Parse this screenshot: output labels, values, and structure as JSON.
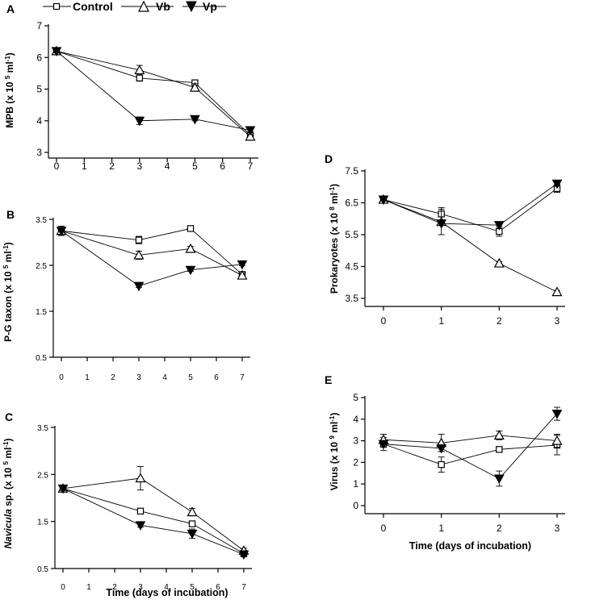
{
  "legend": {
    "items": [
      {
        "name": "Control",
        "marker": "square"
      },
      {
        "name": "Vb",
        "marker": "triangle-up"
      },
      {
        "name": "Vp",
        "marker": "triangle-down"
      }
    ]
  },
  "x_axis_title": "Time (days of incubation)",
  "colors": {
    "ink": "#000000",
    "background": "#ffffff"
  },
  "chart_data": [
    {
      "type": "line",
      "panel_label": "A",
      "title": "",
      "ylabel": "MPB (x 10 5 ml-1)",
      "ylabel_parts": [
        {
          "t": "MPB (x 10 ",
          "s": "normal"
        },
        {
          "t": "5",
          "s": "sup"
        },
        {
          "t": " ml",
          "s": "normal"
        },
        {
          "t": "-1",
          "s": "sup"
        },
        {
          "t": ")",
          "s": "normal"
        }
      ],
      "xlabel": "",
      "xlim": [
        0,
        7
      ],
      "ylim": [
        3,
        7
      ],
      "xticks": [
        0,
        1,
        2,
        3,
        4,
        5,
        6,
        7
      ],
      "xtick_labels": [
        "0",
        "1",
        "2",
        "3",
        "4",
        "5",
        "6",
        "7"
      ],
      "yticks": [
        3,
        4,
        5,
        6,
        7
      ],
      "ytick_labels": [
        "3",
        "4",
        "5",
        "6",
        "7"
      ],
      "series": [
        {
          "name": "Control",
          "marker": "square",
          "x": [
            0,
            3,
            5,
            7
          ],
          "y": [
            6.2,
            5.35,
            5.2,
            3.55
          ],
          "err": [
            0.05,
            0.1,
            0.07,
            0.08
          ]
        },
        {
          "name": "Vb",
          "marker": "triangle-up",
          "x": [
            0,
            3,
            5,
            7
          ],
          "y": [
            6.2,
            5.6,
            5.05,
            3.5
          ],
          "err": [
            0.05,
            0.15,
            0.12,
            0.08
          ]
        },
        {
          "name": "Vp",
          "marker": "triangle-down",
          "x": [
            0,
            3,
            5,
            7
          ],
          "y": [
            6.2,
            4.0,
            4.05,
            3.7
          ],
          "err": [
            0.05,
            0.12,
            0.05,
            0.08
          ]
        }
      ]
    },
    {
      "type": "line",
      "panel_label": "B",
      "title": "",
      "ylabel": "P-G taxon (x 10 5 ml-1)",
      "ylabel_parts": [
        {
          "t": "P-G taxon (x 10 ",
          "s": "normal"
        },
        {
          "t": "5",
          "s": "sup"
        },
        {
          "t": " ml",
          "s": "normal"
        },
        {
          "t": "-1",
          "s": "sup"
        },
        {
          "t": ")",
          "s": "normal"
        }
      ],
      "xlabel": "",
      "xlim": [
        0,
        7
      ],
      "ylim": [
        0.5,
        3.5
      ],
      "xticks": [
        0,
        1,
        2,
        3,
        4,
        5,
        6,
        7
      ],
      "xtick_labels": [
        "0",
        "1",
        "2",
        "3",
        "4",
        "5",
        "6",
        "7"
      ],
      "yticks": [
        0.5,
        1.5,
        2.5,
        3.5
      ],
      "ytick_labels": [
        "0.5",
        "1.5",
        "2.5",
        "3.5"
      ],
      "series": [
        {
          "name": "Control",
          "marker": "square",
          "x": [
            0,
            3,
            5,
            7
          ],
          "y": [
            3.25,
            3.05,
            3.3,
            2.3
          ],
          "err": [
            0.1,
            0.08,
            0.06,
            0.05
          ]
        },
        {
          "name": "Vb",
          "marker": "triangle-up",
          "x": [
            0,
            3,
            5,
            7
          ],
          "y": [
            3.25,
            2.72,
            2.86,
            2.28
          ],
          "err": [
            0.1,
            0.09,
            0.05,
            0.05
          ]
        },
        {
          "name": "Vp",
          "marker": "triangle-down",
          "x": [
            0,
            3,
            5,
            7
          ],
          "y": [
            3.25,
            2.05,
            2.4,
            2.52
          ],
          "err": [
            0.1,
            0.03,
            0.03,
            0.03
          ]
        }
      ]
    },
    {
      "type": "line",
      "panel_label": "C",
      "title": "",
      "ylabel": "Navicula sp. (x 10 5 ml-1)",
      "ylabel_parts": [
        {
          "t": "Navicula",
          "s": "italic"
        },
        {
          "t": " sp. (x 10 ",
          "s": "normal"
        },
        {
          "t": "5",
          "s": "sup"
        },
        {
          "t": " ml",
          "s": "normal"
        },
        {
          "t": "-1",
          "s": "sup"
        },
        {
          "t": ")",
          "s": "normal"
        }
      ],
      "xlabel": "",
      "xlim": [
        0,
        7
      ],
      "ylim": [
        0.5,
        3.5
      ],
      "xticks": [
        0,
        1,
        2,
        3,
        4,
        5,
        6,
        7
      ],
      "xtick_labels": [
        "0",
        "1",
        "2",
        "3",
        "4",
        "5",
        "6",
        "7"
      ],
      "yticks": [
        0.5,
        1.5,
        2.5,
        3.5
      ],
      "ytick_labels": [
        "0.5",
        "1.5",
        "2.5",
        "3.5"
      ],
      "series": [
        {
          "name": "Control",
          "marker": "square",
          "x": [
            0,
            3,
            5,
            7
          ],
          "y": [
            2.2,
            1.72,
            1.45,
            0.82
          ],
          "err": [
            0.05,
            0.05,
            0.05,
            0.05
          ]
        },
        {
          "name": "Vb",
          "marker": "triangle-up",
          "x": [
            0,
            3,
            5,
            7
          ],
          "y": [
            2.2,
            2.42,
            1.7,
            0.88
          ],
          "err": [
            0.05,
            0.25,
            0.08,
            0.05
          ]
        },
        {
          "name": "Vp",
          "marker": "triangle-down",
          "x": [
            0,
            3,
            5,
            7
          ],
          "y": [
            2.2,
            1.42,
            1.24,
            0.8
          ],
          "err": [
            0.05,
            0.04,
            0.1,
            0.05
          ]
        }
      ]
    },
    {
      "type": "line",
      "panel_label": "D",
      "title": "",
      "ylabel": "Prokaryotes (x 10 8 ml-1)",
      "ylabel_parts": [
        {
          "t": "Prokaryotes (x 10 ",
          "s": "normal"
        },
        {
          "t": "8",
          "s": "sup"
        },
        {
          "t": " ml",
          "s": "normal"
        },
        {
          "t": "-1",
          "s": "sup"
        },
        {
          "t": ")",
          "s": "normal"
        }
      ],
      "xlabel": "",
      "xlim": [
        0,
        3
      ],
      "ylim": [
        3.5,
        7.5
      ],
      "xticks": [
        0,
        1,
        2,
        3
      ],
      "xtick_labels": [
        "0",
        "1",
        "2",
        "3"
      ],
      "yticks": [
        3.5,
        4.5,
        5.5,
        6.5,
        7.5
      ],
      "ytick_labels": [
        "3.5",
        "4.5",
        "5.5",
        "6.5",
        "7.5"
      ],
      "series": [
        {
          "name": "Control",
          "marker": "square",
          "x": [
            0,
            1,
            2,
            3
          ],
          "y": [
            6.6,
            6.15,
            5.6,
            6.95
          ],
          "err": [
            0.05,
            0.2,
            0.15,
            0.12
          ]
        },
        {
          "name": "Vb",
          "marker": "triangle-up",
          "x": [
            0,
            1,
            2,
            3
          ],
          "y": [
            6.6,
            5.9,
            4.6,
            3.7
          ],
          "err": [
            0.05,
            0.4,
            0.05,
            0.05
          ]
        },
        {
          "name": "Vp",
          "marker": "triangle-down",
          "x": [
            0,
            1,
            2,
            3
          ],
          "y": [
            6.6,
            5.85,
            5.8,
            7.1
          ],
          "err": [
            0.05,
            0.05,
            0.1,
            0.08
          ]
        }
      ]
    },
    {
      "type": "line",
      "panel_label": "E",
      "title": "",
      "ylabel": "Virus (x 10 9 ml-1)",
      "ylabel_parts": [
        {
          "t": "Virus (x 10 ",
          "s": "normal"
        },
        {
          "t": "9",
          "s": "sup"
        },
        {
          "t": " ml",
          "s": "normal"
        },
        {
          "t": "-1",
          "s": "sup"
        },
        {
          "t": ")",
          "s": "normal"
        }
      ],
      "xlabel": "Time (days of incubation)",
      "xlim": [
        0,
        3
      ],
      "ylim": [
        0,
        5
      ],
      "xticks": [
        0,
        1,
        2,
        3
      ],
      "xtick_labels": [
        "0",
        "1",
        "2",
        "3"
      ],
      "yticks": [
        0,
        1,
        2,
        3,
        4,
        5
      ],
      "ytick_labels": [
        "0",
        "1",
        "2",
        "3",
        "4",
        "5"
      ],
      "series": [
        {
          "name": "Control",
          "marker": "square",
          "x": [
            0,
            1,
            2,
            3
          ],
          "y": [
            2.85,
            1.9,
            2.6,
            2.8
          ],
          "err": [
            0.3,
            0.35,
            0.1,
            0.45
          ]
        },
        {
          "name": "Vb",
          "marker": "triangle-up",
          "x": [
            0,
            1,
            2,
            3
          ],
          "y": [
            3.05,
            2.9,
            3.25,
            3.0
          ],
          "err": [
            0.25,
            0.4,
            0.2,
            0.3
          ]
        },
        {
          "name": "Vp",
          "marker": "triangle-down",
          "x": [
            0,
            1,
            2,
            3
          ],
          "y": [
            2.85,
            2.65,
            1.25,
            4.25
          ],
          "err": [
            0.15,
            0.15,
            0.35,
            0.3
          ]
        }
      ]
    }
  ]
}
